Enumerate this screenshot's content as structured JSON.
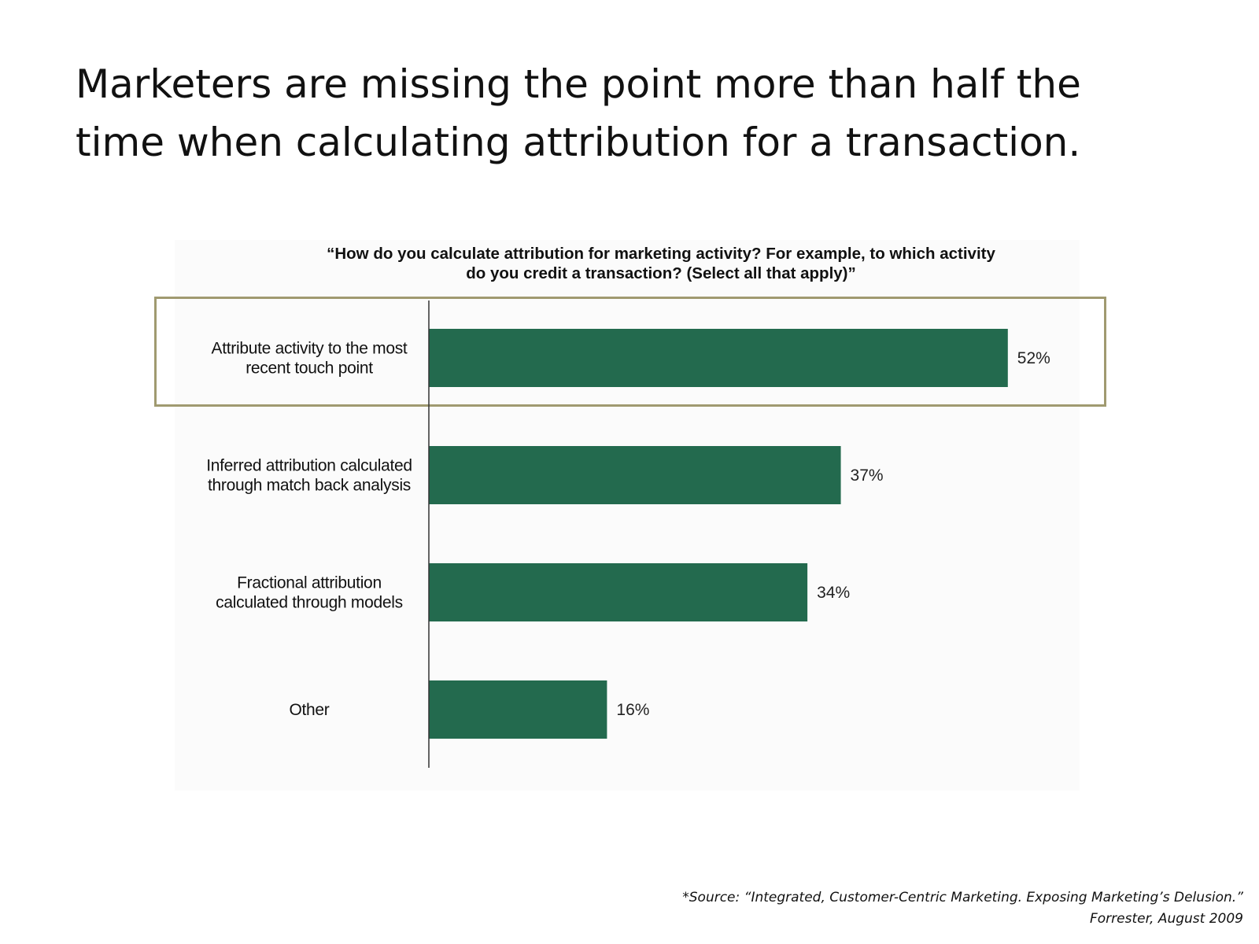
{
  "headline": {
    "line1": "Marketers are missing the point more than half the",
    "line2": "time when calculating attribution for a transaction."
  },
  "chart_data": {
    "type": "bar",
    "orientation": "horizontal",
    "title_line1": "“How do you calculate attribution for marketing activity? For example, to which activity",
    "title_line2": "do you credit a transaction? (Select all that apply)”",
    "categories": [
      [
        "Attribute activity to the most",
        "recent touch point"
      ],
      [
        "Inferred attribution calculated",
        "through match back analysis"
      ],
      [
        "Fractional attribution",
        "calculated through models"
      ],
      [
        "Other"
      ]
    ],
    "values": [
      52,
      37,
      34,
      16
    ],
    "value_labels": [
      "52%",
      "37%",
      "34%",
      "16%"
    ],
    "unit": "%",
    "xlim": [
      0,
      100
    ],
    "highlighted_category_index": 0,
    "grid": false,
    "bar_color": "#236a4e",
    "highlight_border_color": "#a09a70"
  },
  "source": {
    "line1": "*Source: “Integrated, Customer-Centric Marketing. Exposing Marketing’s Delusion.”",
    "line2": "Forrester, August 2009"
  }
}
